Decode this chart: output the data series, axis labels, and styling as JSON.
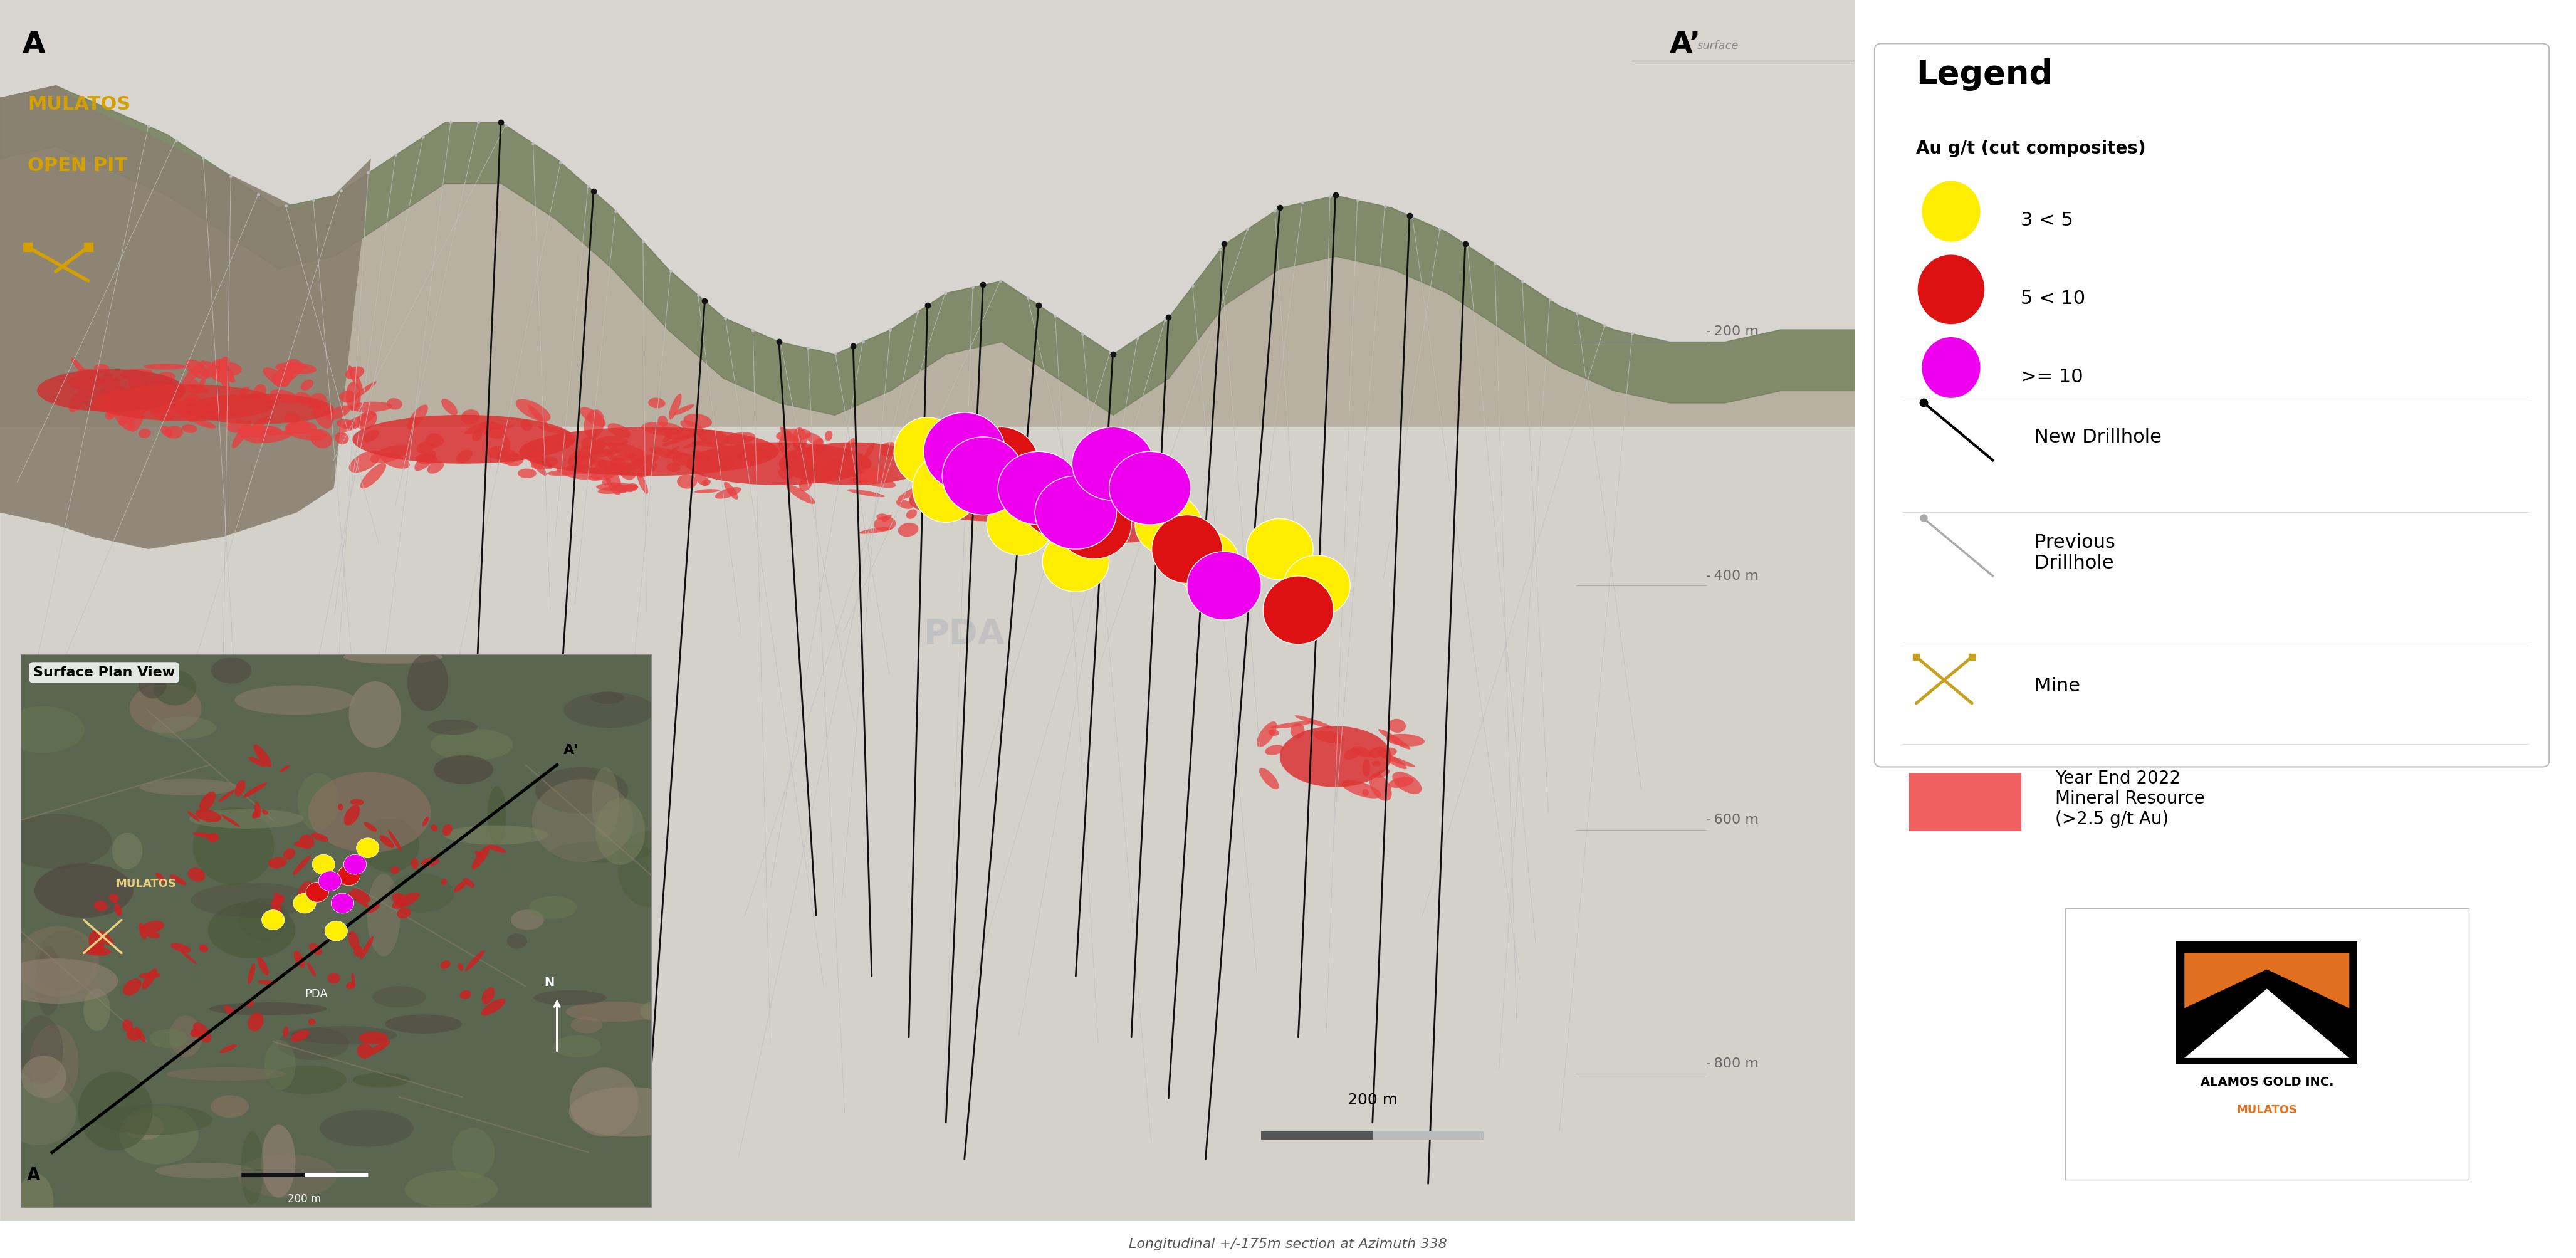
{
  "figure_bg": "#ffffff",
  "main_bg": "#E8E8E8",
  "terrain_bg": "#C8C8C8",
  "subtitle": "Longitudinal +/-175m section at Azimuth 338",
  "label_A": "A",
  "label_Aprime": "A’",
  "label_surface": "surface",
  "label_PDA": "PDA",
  "depth_labels": [
    "- 200 m",
    "- 400 m",
    "- 600 m",
    "- 800 m"
  ],
  "legend_title": "Legend",
  "legend_au_title": "Au g/t (cut composites)",
  "legend_items": [
    {
      "label": "3 < 5",
      "color": "#FFEE00"
    },
    {
      "label": "5 < 10",
      "color": "#DD1111"
    },
    {
      "label": ">= 10",
      "color": "#EE00EE"
    }
  ],
  "new_drillhole_label": "New Drillhole",
  "previous_drillhole_label": "Previous\nDrillhole",
  "mine_label": "Mine",
  "mineral_resource_label": "Year End 2022\nMineral Resource\n(>2.5 g/t Au)",
  "mineral_resource_color": "#F06060",
  "scale_bar_label": "200 m",
  "company_name": "ALAMOS GOLD INC.",
  "company_sub": "MULATOS",
  "surface_plan_title": "Surface Plan View",
  "mulatos_label": "MULATOS",
  "open_pit_label": "OPEN PIT",
  "mulatos_color": "#D4A000",
  "mine_icon_color": "#D4A000",
  "terrain_rocky_color": "#A0A090",
  "terrain_green_color": "#7A8A60",
  "cross_bg": "#E4E4E4",
  "prev_drill_color": "#C0C0C0",
  "new_drill_color": "#111111"
}
